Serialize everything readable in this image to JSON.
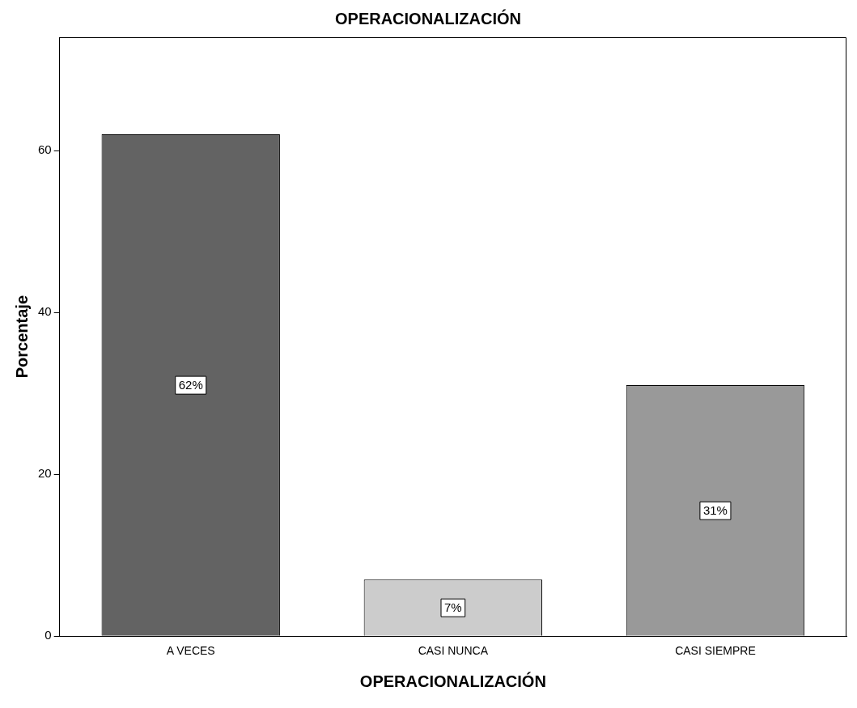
{
  "chart_data": {
    "type": "bar",
    "title": "OPERACIONALIZACIÓN",
    "xlabel": "OPERACIONALIZACIÓN",
    "ylabel": "Porcentaje",
    "categories": [
      "A VECES",
      "CASI NUNCA",
      "CASI SIEMPRE"
    ],
    "values": [
      62,
      7,
      31
    ],
    "colors": [
      "#636363",
      "#cccccc",
      "#999999"
    ],
    "value_labels": [
      "62%",
      "7%",
      "31%"
    ],
    "ylim": [
      0,
      74
    ],
    "yticks": [
      0,
      20,
      40,
      60
    ]
  }
}
